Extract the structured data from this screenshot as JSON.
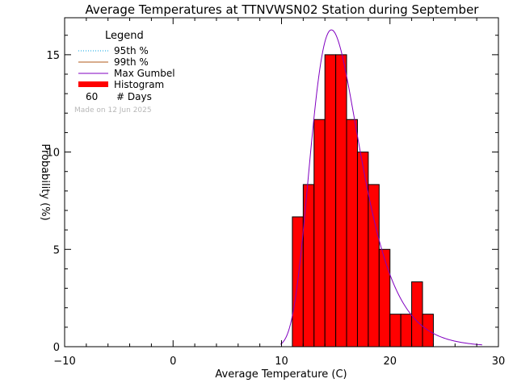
{
  "chart_data": {
    "type": "bar",
    "title": "Average Temperatures at TTNVWSN02 Station during September",
    "xlabel": "Average Temperature (C)",
    "ylabel": "Probability (%)",
    "xlim": [
      -10,
      30
    ],
    "ylim": [
      0,
      16.9
    ],
    "xticks": [
      -10,
      0,
      10,
      20,
      30
    ],
    "yticks": [
      0,
      5,
      10,
      15
    ],
    "histogram": {
      "name": "Histogram",
      "bin_width": 1,
      "bins": [
        {
          "x0": 11,
          "value": 6.67
        },
        {
          "x0": 12,
          "value": 8.33
        },
        {
          "x0": 13,
          "value": 11.67
        },
        {
          "x0": 14,
          "value": 15.0
        },
        {
          "x0": 15,
          "value": 15.0
        },
        {
          "x0": 16,
          "value": 11.67
        },
        {
          "x0": 17,
          "value": 10.0
        },
        {
          "x0": 18,
          "value": 8.33
        },
        {
          "x0": 19,
          "value": 5.0
        },
        {
          "x0": 20,
          "value": 1.67
        },
        {
          "x0": 21,
          "value": 1.67
        },
        {
          "x0": 22,
          "value": 3.33
        },
        {
          "x0": 23,
          "value": 1.67
        }
      ],
      "color": "#ff0000"
    },
    "gumbel": {
      "name": "Max Gumbel",
      "mu": 14.6,
      "beta": 2.26,
      "x_range": [
        9.9,
        28.5
      ],
      "color": "#8000c0"
    },
    "legend": {
      "title": "Legend",
      "items": [
        {
          "label": "95th %",
          "style": "dotted",
          "color": "#00a0e0"
        },
        {
          "label": "99th %",
          "style": "solid",
          "color": "#b05a1a"
        },
        {
          "label": "Max Gumbel",
          "style": "solid",
          "color": "#8000c0"
        },
        {
          "label": "Histogram",
          "style": "thick",
          "color": "#ff0000"
        }
      ],
      "days_value": "60",
      "days_label": "# Days",
      "made_on": "Made on 12 Jun 2025"
    }
  }
}
